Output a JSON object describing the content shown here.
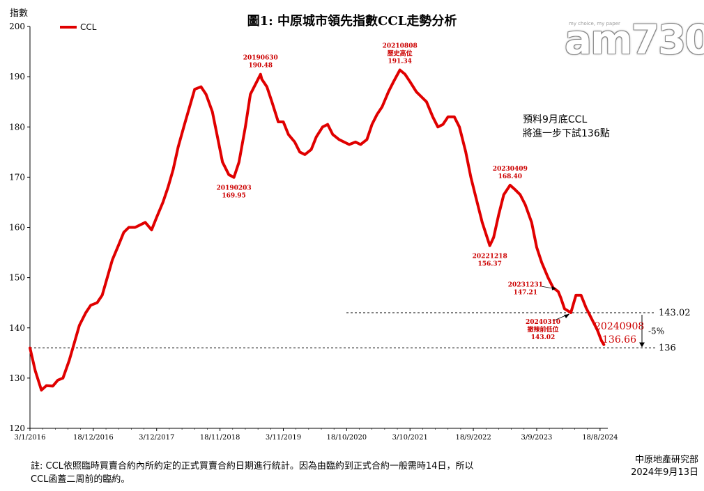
{
  "title": "圖1: 中原城市領先指數CCL走勢分析",
  "y_axis_label": "指數",
  "legend_label": "CCL",
  "watermark": {
    "main": "am730",
    "tagline": "my choice, my paper"
  },
  "forecast_text": [
    "預料9月底CCL",
    "將進一步下試136點"
  ],
  "footnote": "註: CCL依照臨時買賣合約內所約定的正式買賣合約日期進行統計。因為由臨約到正式合約一般需時14日，所以CCL函蓋二周前的臨約。",
  "source": [
    "中原地產研究部",
    "2024年9月13日"
  ],
  "colors": {
    "line": "#e00000",
    "annotation": "#cc0000",
    "axis": "#000000"
  },
  "chart_data": {
    "type": "line",
    "title": "圖1: 中原城市領先指數CCL走勢分析",
    "ylabel": "指數",
    "ylim": [
      120,
      200
    ],
    "y_ticks": [
      120,
      130,
      140,
      150,
      160,
      170,
      180,
      190,
      200
    ],
    "x_ticks": [
      "3/1/2016",
      "18/12/2016",
      "3/12/2017",
      "18/11/2018",
      "3/11/2019",
      "18/10/2020",
      "3/10/2021",
      "18/9/2022",
      "3/9/2023",
      "18/8/2024"
    ],
    "x_range": [
      "2016-01-03",
      "2024-09-30"
    ],
    "series": [
      {
        "name": "CCL",
        "points": [
          [
            "2016-01-03",
            136.0
          ],
          [
            "2016-02-01",
            131.5
          ],
          [
            "2016-03-06",
            127.6
          ],
          [
            "2016-04-03",
            128.5
          ],
          [
            "2016-05-08",
            128.4
          ],
          [
            "2016-06-05",
            129.6
          ],
          [
            "2016-07-03",
            130.0
          ],
          [
            "2016-08-07",
            133.5
          ],
          [
            "2016-09-04",
            137.0
          ],
          [
            "2016-10-02",
            140.5
          ],
          [
            "2016-11-06",
            143.0
          ],
          [
            "2016-12-04",
            144.5
          ],
          [
            "2017-01-08",
            145.0
          ],
          [
            "2017-02-05",
            146.5
          ],
          [
            "2017-03-05",
            150.0
          ],
          [
            "2017-04-02",
            153.5
          ],
          [
            "2017-05-07",
            156.5
          ],
          [
            "2017-06-04",
            159.0
          ],
          [
            "2017-07-02",
            160.0
          ],
          [
            "2017-08-06",
            160.0
          ],
          [
            "2017-09-03",
            160.5
          ],
          [
            "2017-10-01",
            161.0
          ],
          [
            "2017-11-05",
            159.5
          ],
          [
            "2017-12-03",
            162.0
          ],
          [
            "2018-01-07",
            165.0
          ],
          [
            "2018-02-04",
            168.0
          ],
          [
            "2018-03-04",
            171.5
          ],
          [
            "2018-04-01",
            176.0
          ],
          [
            "2018-05-06",
            180.5
          ],
          [
            "2018-06-03",
            184.0
          ],
          [
            "2018-07-01",
            187.5
          ],
          [
            "2018-08-05",
            188.0
          ],
          [
            "2018-09-02",
            186.5
          ],
          [
            "2018-10-07",
            183.0
          ],
          [
            "2018-11-04",
            178.0
          ],
          [
            "2018-12-02",
            173.0
          ],
          [
            "2019-01-06",
            170.5
          ],
          [
            "2019-02-03",
            169.95
          ],
          [
            "2019-03-03",
            173.0
          ],
          [
            "2019-04-07",
            180.0
          ],
          [
            "2019-05-05",
            186.5
          ],
          [
            "2019-06-30",
            190.48
          ],
          [
            "2019-07-07",
            189.5
          ],
          [
            "2019-08-04",
            188.0
          ],
          [
            "2019-09-01",
            185.0
          ],
          [
            "2019-10-06",
            181.0
          ],
          [
            "2019-11-03",
            181.0
          ],
          [
            "2019-12-01",
            178.5
          ],
          [
            "2020-01-05",
            177.0
          ],
          [
            "2020-02-02",
            175.0
          ],
          [
            "2020-03-01",
            174.5
          ],
          [
            "2020-04-05",
            175.5
          ],
          [
            "2020-05-03",
            178.0
          ],
          [
            "2020-06-07",
            180.0
          ],
          [
            "2020-07-05",
            180.5
          ],
          [
            "2020-08-02",
            178.5
          ],
          [
            "2020-09-06",
            177.5
          ],
          [
            "2020-10-04",
            177.0
          ],
          [
            "2020-11-01",
            176.5
          ],
          [
            "2020-12-06",
            177.0
          ],
          [
            "2021-01-03",
            176.5
          ],
          [
            "2021-02-07",
            177.5
          ],
          [
            "2021-03-07",
            180.5
          ],
          [
            "2021-04-04",
            182.5
          ],
          [
            "2021-05-02",
            184.0
          ],
          [
            "2021-06-06",
            187.0
          ],
          [
            "2021-07-04",
            189.0
          ],
          [
            "2021-08-08",
            191.34
          ],
          [
            "2021-09-05",
            190.5
          ],
          [
            "2021-10-03",
            189.0
          ],
          [
            "2021-11-07",
            187.0
          ],
          [
            "2021-12-05",
            186.0
          ],
          [
            "2022-01-02",
            185.0
          ],
          [
            "2022-02-06",
            182.0
          ],
          [
            "2022-03-06",
            180.0
          ],
          [
            "2022-04-03",
            180.5
          ],
          [
            "2022-05-01",
            182.0
          ],
          [
            "2022-06-05",
            182.0
          ],
          [
            "2022-07-03",
            180.0
          ],
          [
            "2022-08-07",
            175.0
          ],
          [
            "2022-09-04",
            170.0
          ],
          [
            "2022-10-02",
            166.0
          ],
          [
            "2022-11-06",
            161.0
          ],
          [
            "2022-12-18",
            156.37
          ],
          [
            "2023-01-08",
            158.0
          ],
          [
            "2023-02-05",
            162.5
          ],
          [
            "2023-03-05",
            166.5
          ],
          [
            "2023-04-09",
            168.4
          ],
          [
            "2023-05-07",
            167.5
          ],
          [
            "2023-06-04",
            166.5
          ],
          [
            "2023-07-02",
            164.5
          ],
          [
            "2023-08-06",
            161.0
          ],
          [
            "2023-09-03",
            156.0
          ],
          [
            "2023-10-01",
            153.0
          ],
          [
            "2023-11-05",
            150.0
          ],
          [
            "2023-12-03",
            148.0
          ],
          [
            "2023-12-31",
            147.21
          ],
          [
            "2024-01-14",
            146.0
          ],
          [
            "2024-02-04",
            143.8
          ],
          [
            "2024-03-10",
            143.02
          ],
          [
            "2024-04-07",
            146.5
          ],
          [
            "2024-05-05",
            146.5
          ],
          [
            "2024-06-02",
            144.0
          ],
          [
            "2024-07-07",
            141.5
          ],
          [
            "2024-08-04",
            139.5
          ],
          [
            "2024-08-25",
            137.5
          ],
          [
            "2024-09-08",
            136.66
          ]
        ]
      }
    ],
    "annotations": [
      {
        "date": "2019-02-03",
        "value": 169.95,
        "lines": [
          "20190203",
          "169.95"
        ],
        "position": "below"
      },
      {
        "date": "2019-06-30",
        "value": 190.48,
        "lines": [
          "20190630",
          "190.48"
        ],
        "position": "above"
      },
      {
        "date": "2021-08-08",
        "value": 191.34,
        "lines": [
          "20210808",
          "歷史高位",
          "191.34"
        ],
        "position": "above"
      },
      {
        "date": "2022-12-18",
        "value": 156.37,
        "lines": [
          "20221218",
          "156.37"
        ],
        "position": "below"
      },
      {
        "date": "2023-04-09",
        "value": 168.4,
        "lines": [
          "20230409",
          "168.40"
        ],
        "position": "above"
      },
      {
        "date": "2023-12-31",
        "value": 147.21,
        "lines": [
          "20231231",
          "147.21"
        ],
        "position": "left-arrow"
      },
      {
        "date": "2024-03-10",
        "value": 143.02,
        "lines": [
          "20240310",
          "撤辣前低位",
          "143.02"
        ],
        "position": "below-arrow"
      },
      {
        "date": "2024-09-08",
        "value": 136.66,
        "lines": [
          "20240908",
          "136.66"
        ],
        "position": "right-large"
      }
    ],
    "reference_lines": [
      {
        "value": 143.02,
        "label": "143.02"
      },
      {
        "value": 136,
        "label": "136"
      }
    ],
    "change_label": "-5%"
  }
}
